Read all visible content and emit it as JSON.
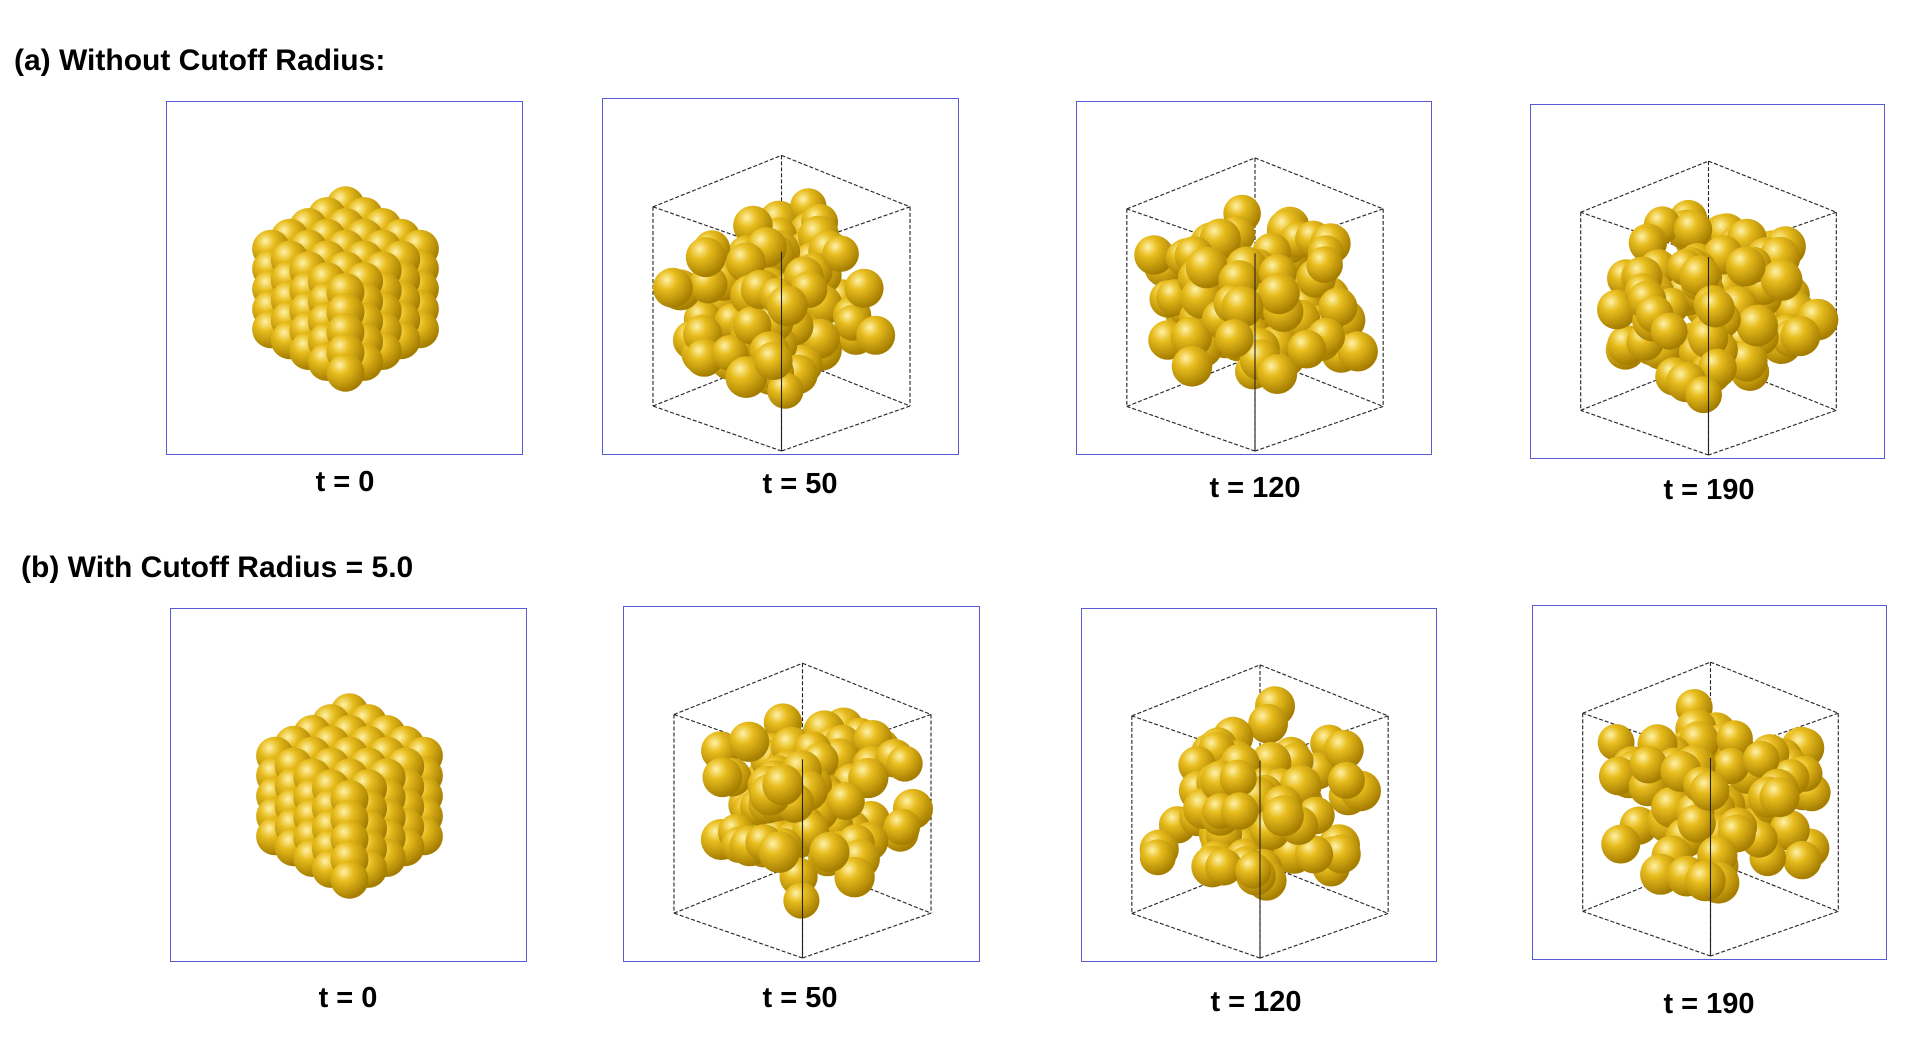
{
  "rows": [
    {
      "title": "(a) Without Cutoff Radius:",
      "panels": [
        {
          "caption": "t = 0",
          "state": "lattice"
        },
        {
          "caption": "t = 50",
          "state": "expanded"
        },
        {
          "caption": "t = 120",
          "state": "expanded"
        },
        {
          "caption": "t = 190",
          "state": "expanded"
        }
      ]
    },
    {
      "title": "(b) With Cutoff Radius = 5.0",
      "panels": [
        {
          "caption": "t = 0",
          "state": "lattice"
        },
        {
          "caption": "t = 50",
          "state": "expanded"
        },
        {
          "caption": "t = 120",
          "state": "expanded"
        },
        {
          "caption": "t = 190",
          "state": "expanded"
        }
      ]
    }
  ],
  "colors": {
    "sphere": "#e8bd1e",
    "sphere_highlight": "#fff2a8",
    "sphere_shadow": "#a57d00",
    "panel_border": "#5a5ad6",
    "box_edge": "#222222"
  }
}
